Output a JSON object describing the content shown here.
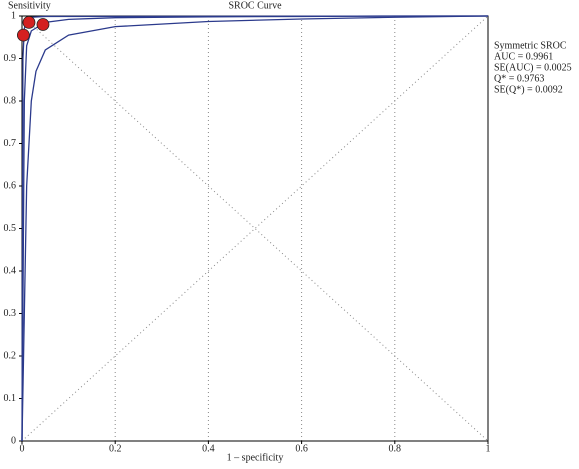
{
  "chart_data": {
    "type": "line",
    "title": "SROC Curve",
    "y_label": "Sensitivity",
    "x_label": "1 – specificity",
    "xlim": [
      0,
      1
    ],
    "ylim": [
      0,
      1
    ],
    "xticks": [
      0,
      0.2,
      0.4,
      0.6,
      0.8,
      1
    ],
    "yticks": [
      0,
      0.1,
      0.2,
      0.3,
      0.4,
      0.5,
      0.6,
      0.7,
      0.8,
      0.9,
      1
    ],
    "grid": true,
    "annotations": [
      "Symmetric SROC",
      "AUC = 0.9961",
      "SE(AUC) = 0.0025",
      "Q* = 0.9763",
      "SE(Q*) = 0.0092"
    ],
    "series": [
      {
        "color": "#2b3a8c",
        "x": [
          0,
          0.005,
          0.01,
          0.02,
          0.05,
          0.1,
          0.2,
          0.4,
          0.6,
          0.8,
          1
        ],
        "values": [
          0,
          0.8,
          0.93,
          0.965,
          0.985,
          0.992,
          0.996,
          0.998,
          0.999,
          1,
          1
        ]
      },
      {
        "color": "#2b3a8c",
        "x": [
          0,
          0.002,
          0.005,
          0.01,
          0.02,
          0.05,
          1
        ],
        "values": [
          0,
          0.9,
          0.97,
          0.99,
          0.997,
          0.999,
          1
        ]
      },
      {
        "color": "#2b3a8c",
        "x": [
          0,
          0.01,
          0.02,
          0.03,
          0.05,
          0.1,
          0.2,
          0.4,
          0.6,
          0.8,
          1
        ],
        "values": [
          0,
          0.6,
          0.8,
          0.87,
          0.92,
          0.955,
          0.975,
          0.987,
          0.993,
          0.997,
          1
        ]
      }
    ],
    "points": {
      "color": "#d42020",
      "x": [
        0.003,
        0.015,
        0.045
      ],
      "values": [
        0.955,
        0.985,
        0.98
      ]
    }
  }
}
